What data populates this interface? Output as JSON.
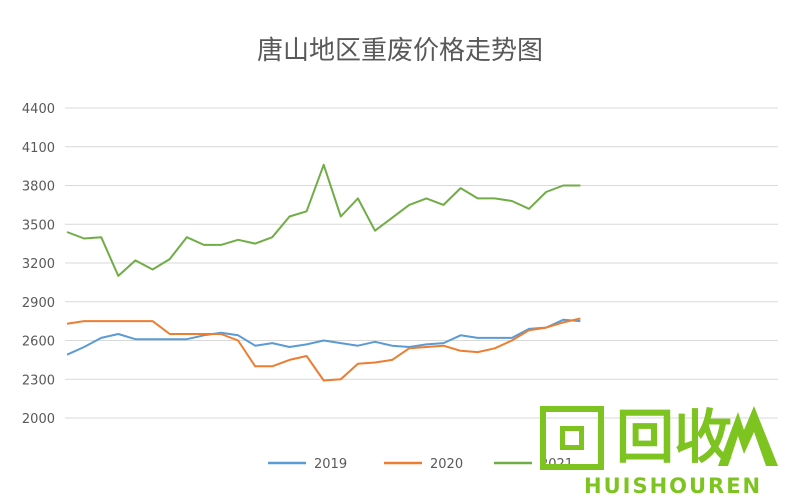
{
  "chart_data": {
    "type": "line",
    "title": "唐山地区重废价格走势图",
    "xlabel": "",
    "ylabel": "",
    "ylim": [
      2000,
      4400
    ],
    "yticks": [
      "4400",
      "4100",
      "3800",
      "3500",
      "3200",
      "2900",
      "2600",
      "2300",
      "2000"
    ],
    "grid": true,
    "legend_position": "bottom",
    "x": [
      0,
      12,
      24,
      36,
      48,
      60,
      72,
      84,
      96,
      108,
      120,
      132,
      144,
      156,
      168,
      180,
      192,
      204,
      216,
      228,
      240,
      252,
      264,
      276,
      288,
      300,
      312,
      324,
      336,
      348,
      360
    ],
    "series": [
      {
        "name": "2019",
        "color": "#5b9bd5",
        "values": [
          2490,
          2550,
          2620,
          2650,
          2610,
          2610,
          2610,
          2610,
          2640,
          2660,
          2640,
          2560,
          2580,
          2550,
          2570,
          2600,
          2580,
          2560,
          2590,
          2560,
          2550,
          2570,
          2580,
          2640,
          2620,
          2620,
          2620,
          2690,
          2700,
          2760,
          2750
        ]
      },
      {
        "name": "2020",
        "color": "#ed7d31",
        "values": [
          2730,
          2750,
          2750,
          2750,
          2750,
          2750,
          2650,
          2650,
          2650,
          2650,
          2600,
          2400,
          2400,
          2450,
          2480,
          2290,
          2300,
          2420,
          2430,
          2450,
          2540,
          2550,
          2560,
          2520,
          2510,
          2540,
          2600,
          2680,
          2700,
          2740,
          2770
        ]
      },
      {
        "name": "2021",
        "color": "#70ad47",
        "values": [
          3440,
          3390,
          3400,
          3100,
          3220,
          3150,
          3230,
          3400,
          3340,
          3340,
          3380,
          3350,
          3400,
          3560,
          3600,
          3960,
          3560,
          3700,
          3450,
          3550,
          3650,
          3700,
          3650,
          3780,
          3700,
          3700,
          3680,
          3620,
          3750,
          3800,
          3800
        ]
      }
    ]
  },
  "watermark": {
    "characters": "回收",
    "brand": "HUISHOUREN"
  }
}
